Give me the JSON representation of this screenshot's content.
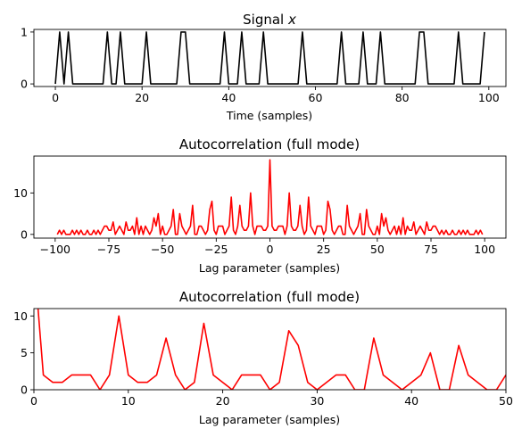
{
  "chart_data": [
    {
      "type": "line",
      "title": "Signal x",
      "title_italic_var": "x",
      "xlabel": "Time (samples)",
      "ylabel": "",
      "xlim": [
        -4.95,
        103.95
      ],
      "ylim": [
        -0.05,
        1.05
      ],
      "xticks": [
        0,
        20,
        40,
        60,
        80,
        100
      ],
      "yticks": [
        0,
        1
      ],
      "color": "#000000",
      "grid": false,
      "x_start": 0,
      "values": [
        0,
        1,
        0,
        1,
        0,
        0,
        0,
        0,
        0,
        0,
        0,
        0,
        1,
        0,
        0,
        1,
        0,
        0,
        0,
        0,
        0,
        1,
        0,
        0,
        0,
        0,
        0,
        0,
        0,
        1,
        1,
        0,
        0,
        0,
        0,
        0,
        0,
        0,
        0,
        1,
        0,
        0,
        0,
        1,
        0,
        0,
        0,
        0,
        1,
        0,
        0,
        0,
        0,
        0,
        0,
        0,
        0,
        1,
        0,
        0,
        0,
        0,
        0,
        0,
        0,
        0,
        1,
        0,
        0,
        0,
        0,
        1,
        0,
        0,
        0,
        1,
        0,
        0,
        0,
        0,
        0,
        0,
        0,
        0,
        1,
        1,
        0,
        0,
        0,
        0,
        0,
        0,
        0,
        1,
        0,
        0,
        0,
        0,
        0,
        1
      ]
    },
    {
      "type": "line",
      "title": "Autocorrelation (full mode)",
      "xlabel": "Lag parameter (samples)",
      "ylabel": "",
      "xlim": [
        -109.9,
        109.9
      ],
      "ylim": [
        -0.9,
        18.9
      ],
      "xticks": [
        -100,
        -75,
        -50,
        -25,
        0,
        25,
        50,
        75,
        100
      ],
      "yticks": [
        0,
        10
      ],
      "color": "#ff0000",
      "grid": false,
      "x_start": 0,
      "symmetric": true,
      "values": [
        18,
        2,
        1,
        1,
        2,
        2,
        2,
        0,
        2,
        10,
        2,
        1,
        1,
        2,
        7,
        2,
        0,
        1,
        9,
        2,
        1,
        0,
        2,
        2,
        2,
        0,
        1,
        8,
        6,
        1,
        0,
        1,
        2,
        2,
        0,
        0,
        7,
        2,
        1,
        0,
        1,
        2,
        5,
        0,
        0,
        6,
        2,
        1,
        0,
        0,
        2,
        0,
        5,
        2,
        4,
        1,
        0,
        1,
        2,
        0,
        2,
        0,
        4,
        0,
        2,
        1,
        1,
        3,
        0,
        1,
        2,
        1,
        0,
        3,
        1,
        1,
        2,
        2,
        1,
        0,
        1,
        0,
        1,
        0,
        0,
        1,
        0,
        0,
        1,
        0,
        1,
        0,
        1,
        0,
        0,
        0,
        1,
        0,
        1,
        0
      ]
    },
    {
      "type": "line",
      "title": "Autocorrelation (full mode)",
      "xlabel": "Lag parameter (samples)",
      "ylabel": "",
      "xlim": [
        0,
        50
      ],
      "ylim": [
        0,
        11
      ],
      "xticks": [
        0,
        10,
        20,
        30,
        40,
        50
      ],
      "yticks": [
        0,
        5,
        10
      ],
      "color": "#ff0000",
      "grid": false,
      "x_start": 0,
      "values": [
        18,
        2,
        1,
        1,
        2,
        2,
        2,
        0,
        2,
        10,
        2,
        1,
        1,
        2,
        7,
        2,
        0,
        1,
        9,
        2,
        1,
        0,
        2,
        2,
        2,
        0,
        1,
        8,
        6,
        1,
        0,
        1,
        2,
        2,
        0,
        0,
        7,
        2,
        1,
        0,
        1,
        2,
        5,
        0,
        0,
        6,
        2,
        1,
        0,
        0,
        2
      ]
    }
  ]
}
